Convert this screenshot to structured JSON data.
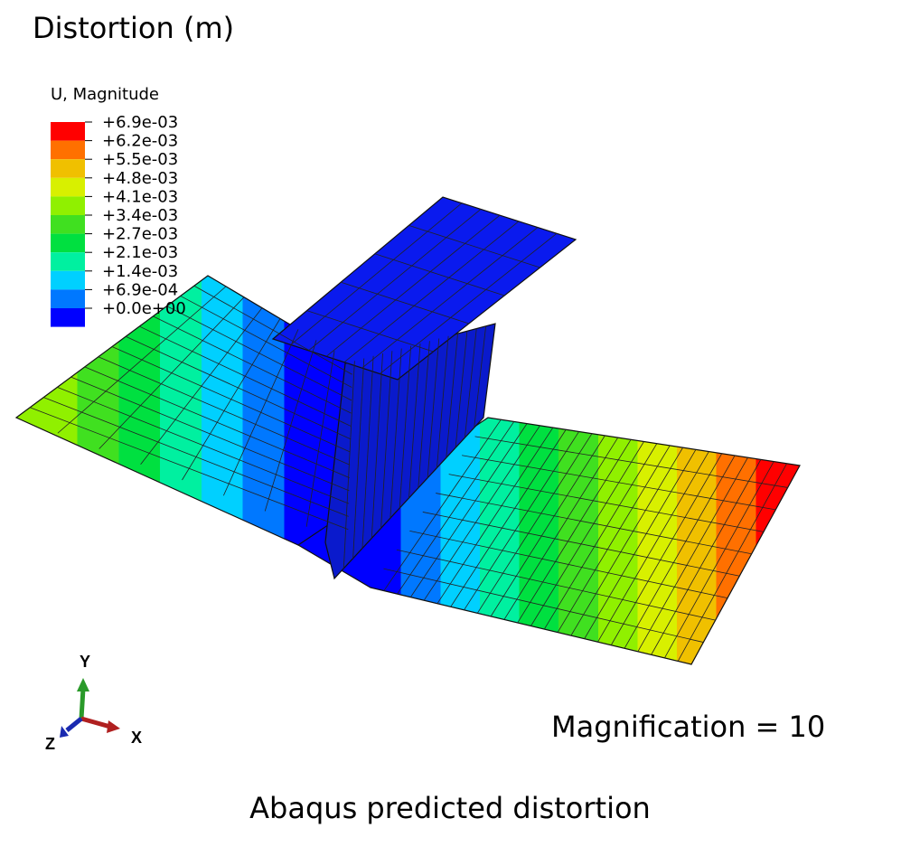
{
  "title": "Distortion (m)",
  "legend": {
    "title": "U, Magnitude",
    "labels": [
      "+6.9e-03",
      "+6.2e-03",
      "+5.5e-03",
      "+4.8e-03",
      "+4.1e-03",
      "+3.4e-03",
      "+2.7e-03",
      "+2.1e-03",
      "+1.4e-03",
      "+6.9e-04",
      "+0.0e+00"
    ],
    "colors": [
      "#ff0000",
      "#ff7000",
      "#f0c000",
      "#d8f000",
      "#90f000",
      "#40e020",
      "#00e040",
      "#00f0a0",
      "#00d0ff",
      "#0078ff",
      "#0000ff"
    ]
  },
  "triad": {
    "y": "Y",
    "z": "Z",
    "x": "X"
  },
  "annotation": "Magnification = 10",
  "caption": "Abaqus predicted distortion"
}
